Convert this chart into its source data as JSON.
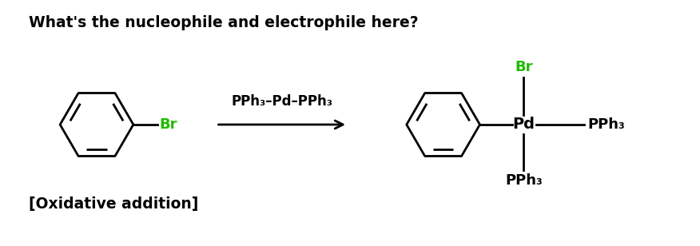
{
  "title": "What's the nucleophile and electrophile here?",
  "title_fontsize": 13.5,
  "title_fontweight": "bold",
  "title_color": "#000000",
  "footer": "[Oxidative addition]",
  "footer_fontsize": 13.5,
  "footer_fontweight": "bold",
  "footer_color": "#000000",
  "green_color": "#22bb00",
  "black_color": "#000000",
  "bg_color": "#ffffff",
  "reagent_text": "PPh₃–Pd–PPh₃",
  "reagent_fontsize": 12.0,
  "reagent_fontweight": "bold",
  "lw": 2.0
}
